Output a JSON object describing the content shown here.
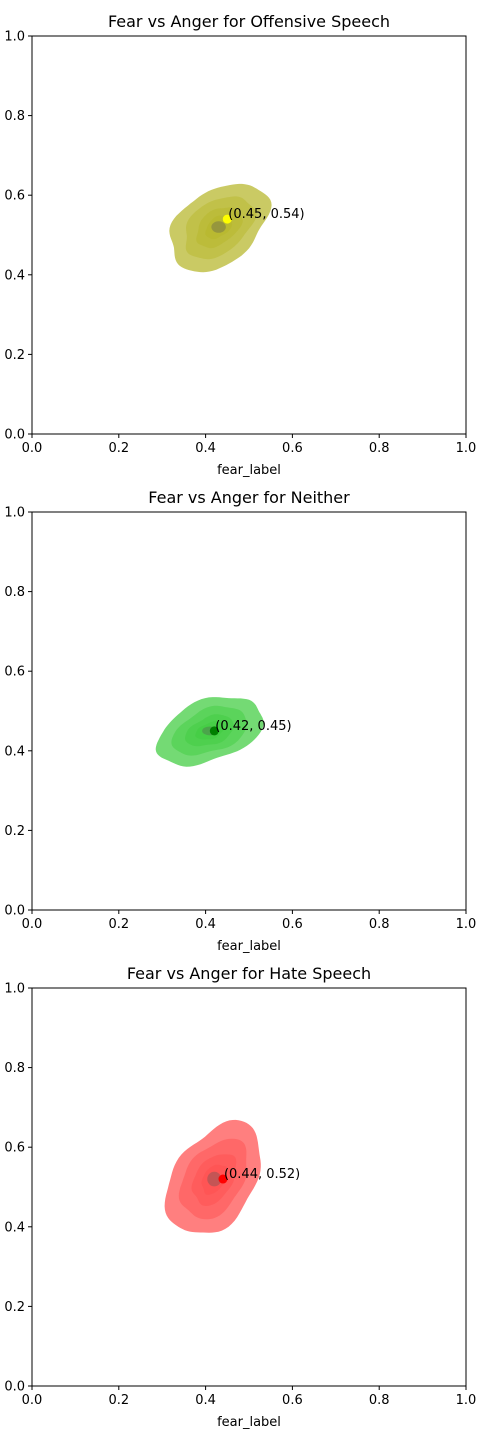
{
  "chart_data": [
    {
      "type": "kde_contour",
      "title": "Fear vs Anger for Offensive Speech",
      "xlabel": "fear_label",
      "ylabel": "",
      "xlim": [
        0.0,
        1.0
      ],
      "ylim": [
        0.0,
        1.0
      ],
      "x_ticks": [
        "0.0",
        "0.2",
        "0.4",
        "0.6",
        "0.8",
        "1.0"
      ],
      "y_ticks": [
        "0.0",
        "0.2",
        "0.4",
        "0.6",
        "0.8",
        "1.0"
      ],
      "grid": false,
      "color": "#b5b528",
      "marker_color": "#ffff00",
      "mean_point": {
        "x": 0.45,
        "y": 0.54
      },
      "annotation": "(0.45, 0.54)",
      "density_center": {
        "x": 0.43,
        "y": 0.52
      },
      "contour_spread": {
        "sx": 0.093,
        "sy": 0.09
      },
      "contour_levels": [
        1.2,
        0.85,
        0.55,
        0.32
      ]
    },
    {
      "type": "kde_contour",
      "title": "Fear vs Anger for Neither",
      "xlabel": "fear_label",
      "ylabel": "",
      "xlim": [
        0.0,
        1.0
      ],
      "ylim": [
        0.0,
        1.0
      ],
      "x_ticks": [
        "0.0",
        "0.2",
        "0.4",
        "0.6",
        "0.8",
        "1.0"
      ],
      "y_ticks": [
        "0.0",
        "0.2",
        "0.4",
        "0.6",
        "0.8",
        "1.0"
      ],
      "grid": false,
      "color": "#3ecc3e",
      "marker_color": "#008000",
      "mean_point": {
        "x": 0.42,
        "y": 0.45
      },
      "annotation": "(0.42, 0.45)",
      "density_center": {
        "x": 0.41,
        "y": 0.45
      },
      "contour_spread": {
        "sx": 0.1,
        "sy": 0.07
      },
      "contour_levels": [
        1.2,
        0.85,
        0.55,
        0.32
      ]
    },
    {
      "type": "kde_contour",
      "title": "Fear vs Anger for Hate Speech",
      "xlabel": "fear_label",
      "ylabel": "",
      "xlim": [
        0.0,
        1.0
      ],
      "ylim": [
        0.0,
        1.0
      ],
      "x_ticks": [
        "0.0",
        "0.2",
        "0.4",
        "0.6",
        "0.8",
        "1.0"
      ],
      "y_ticks": [
        "0.0",
        "0.2",
        "0.4",
        "0.6",
        "0.8",
        "1.0"
      ],
      "grid": false,
      "color": "#ff4d4d",
      "marker_color": "#ff0000",
      "mean_point": {
        "x": 0.44,
        "y": 0.52
      },
      "annotation": "(0.44, 0.52)",
      "density_center": {
        "x": 0.42,
        "y": 0.52
      },
      "contour_spread": {
        "sx": 0.09,
        "sy": 0.115
      },
      "contour_levels": [
        1.2,
        0.85,
        0.55,
        0.32
      ]
    }
  ]
}
